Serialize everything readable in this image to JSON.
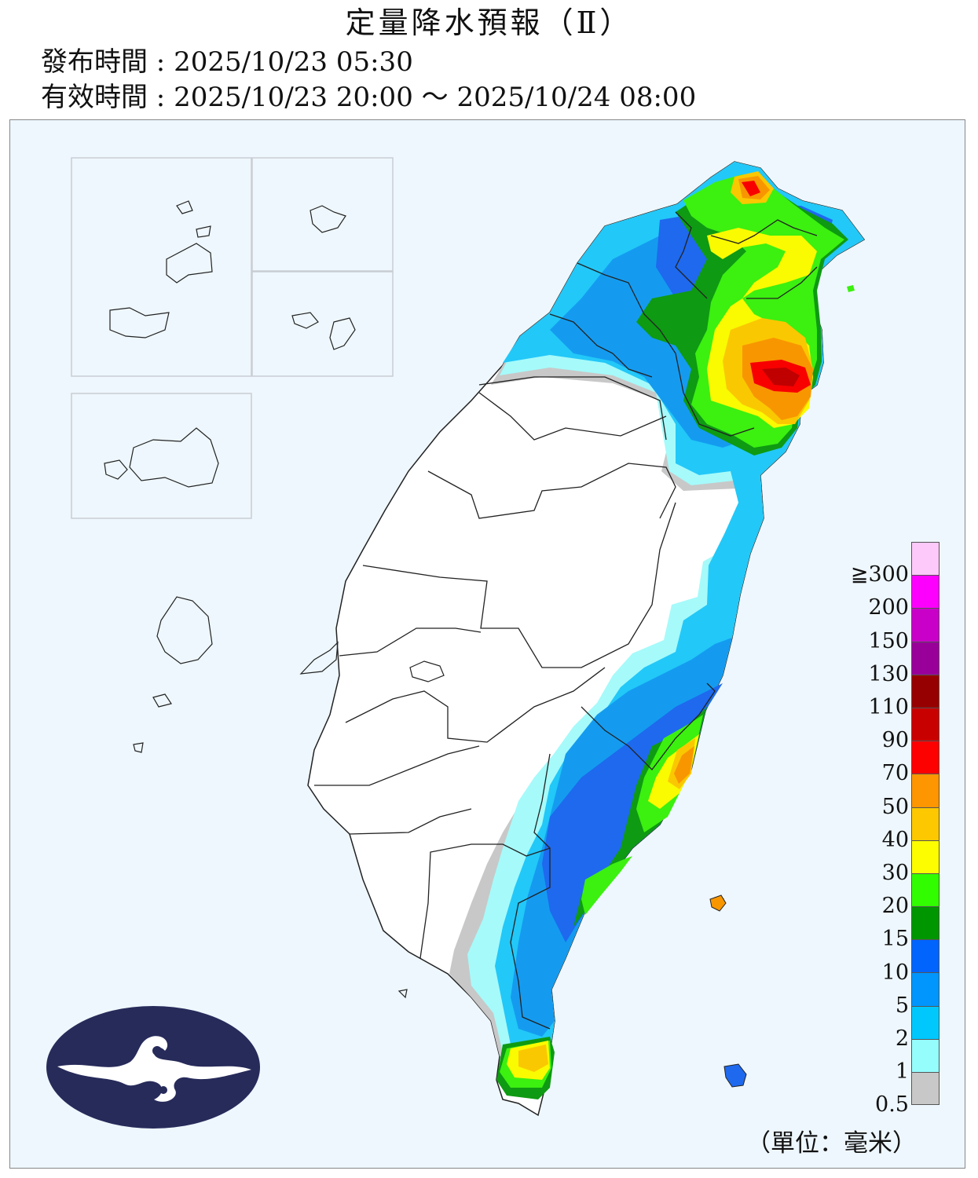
{
  "header": {
    "title": "定量降水預報（Ⅱ）",
    "issue_time": "發布時間 : 2025/10/23 05:30",
    "valid_time": "有效時間 : 2025/10/23 20:00 ～ 2025/10/24 08:00"
  },
  "legend": {
    "unit": "（單位：毫米）",
    "labels": [
      "≧300",
      "200",
      "150",
      "130",
      "110",
      "90",
      "70",
      "50",
      "40",
      "30",
      "20",
      "15",
      "10",
      "5",
      "2",
      "1",
      "0.5"
    ],
    "colors": [
      "#fdc8fa",
      "#fd00fd",
      "#c800c8",
      "#990099",
      "#960000",
      "#c80000",
      "#fd0000",
      "#fd9600",
      "#fdc800",
      "#fdfd00",
      "#32fd00",
      "#009600",
      "#0064fd",
      "#0096fd",
      "#00c8fd",
      "#96fdfd",
      "#c8c8c8"
    ]
  },
  "map": {
    "rain_colors": {
      "gray": "#c8c8c8",
      "cyan": "#a6fafa",
      "sky": "#22c8f8",
      "blue": "#149bf0",
      "royal": "#1e69ee",
      "dkgreen": "#0e9a12",
      "green": "#3cf010",
      "yellow": "#fafa00",
      "gold": "#fac800",
      "orange": "#f89600",
      "red": "#f80000",
      "dkred": "#c00000"
    }
  }
}
